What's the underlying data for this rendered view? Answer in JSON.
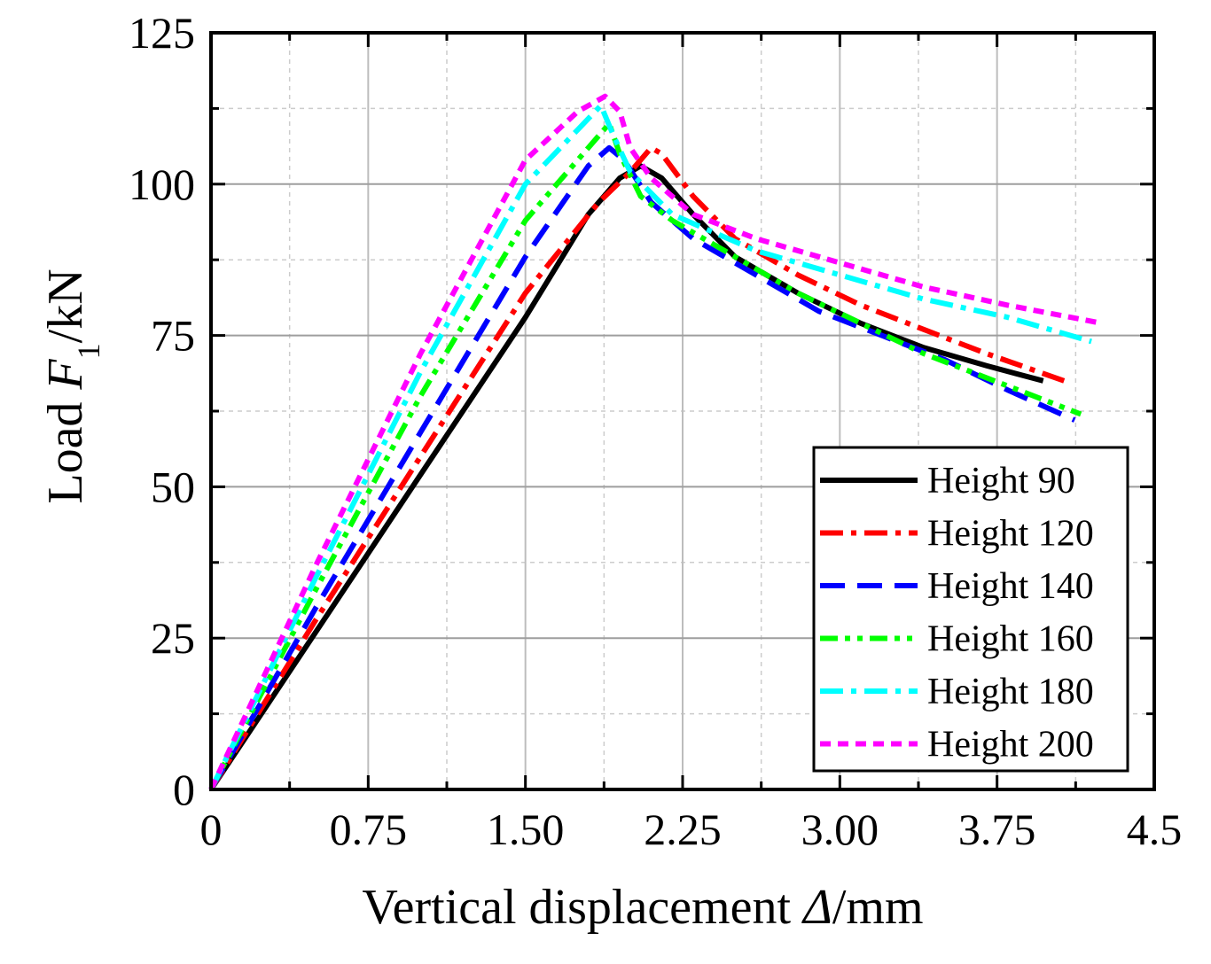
{
  "chart_data": {
    "type": "line",
    "title": "",
    "xlabel": "Vertical displacement Δ/mm",
    "xlabel_parts": {
      "prefix": "Vertical displacement ",
      "symbol": "Δ",
      "suffix": "/mm"
    },
    "ylabel": "Load F1/kN",
    "ylabel_parts": {
      "prefix": "Load ",
      "symbol": "F",
      "subscript": "1",
      "suffix": "/kN"
    },
    "xlim": [
      0,
      4.5
    ],
    "ylim": [
      0,
      125
    ],
    "x_ticks": [
      0,
      0.75,
      1.5,
      2.25,
      3.0,
      3.75,
      4.5
    ],
    "x_tick_labels": [
      "0",
      "0.75",
      "1.50",
      "2.25",
      "3.00",
      "3.75",
      "4.5"
    ],
    "y_ticks": [
      0,
      25,
      50,
      75,
      100,
      125
    ],
    "y_tick_labels": [
      "0",
      "25",
      "50",
      "75",
      "100",
      "125"
    ],
    "grid": true,
    "legend_position": "bottom-right",
    "series": [
      {
        "name": "Height 90",
        "color": "#000000",
        "style": "solid",
        "x": [
          0,
          0.5,
          1.0,
          1.5,
          1.8,
          1.95,
          2.05,
          2.15,
          2.3,
          2.5,
          2.8,
          3.1,
          3.4,
          3.7,
          3.97
        ],
        "y": [
          0,
          26,
          52,
          78,
          95,
          101,
          103,
          101,
          95,
          88,
          82,
          77,
          73,
          70,
          67.5
        ]
      },
      {
        "name": "Height 120",
        "color": "#ff0000",
        "style": "dash-dot",
        "x": [
          0,
          0.5,
          1.0,
          1.5,
          1.85,
          2.0,
          2.1,
          2.15,
          2.3,
          2.5,
          2.8,
          3.1,
          3.4,
          3.7,
          4.07
        ],
        "y": [
          0,
          28,
          55,
          82,
          97,
          102,
          106,
          105,
          98,
          91,
          85,
          80,
          76,
          72,
          67.5
        ]
      },
      {
        "name": "Height 140",
        "color": "#0000ff",
        "style": "dash",
        "x": [
          0,
          0.5,
          1.0,
          1.5,
          1.8,
          1.9,
          1.97,
          2.1,
          2.3,
          2.6,
          2.9,
          3.2,
          3.5,
          3.8,
          4.12
        ],
        "y": [
          0,
          30,
          59,
          88,
          103,
          106,
          104,
          97,
          91,
          85,
          79,
          75,
          71,
          66,
          61
        ]
      },
      {
        "name": "Height 160",
        "color": "#00ff00",
        "style": "dash-dot-dot",
        "x": [
          0,
          0.5,
          1.0,
          1.5,
          1.8,
          1.9,
          1.95,
          2.05,
          2.2,
          2.5,
          2.8,
          3.1,
          3.4,
          3.7,
          4.15
        ],
        "y": [
          0,
          33,
          65,
          94,
          106,
          110,
          105,
          98,
          94,
          88,
          82,
          77,
          72,
          68,
          62
        ]
      },
      {
        "name": "Height 180",
        "color": "#00ffff",
        "style": "dash-dot",
        "x": [
          0,
          0.5,
          1.0,
          1.5,
          1.75,
          1.86,
          1.92,
          2.0,
          2.2,
          2.6,
          3.0,
          3.4,
          3.8,
          4.2
        ],
        "y": [
          0,
          35,
          69,
          100,
          109,
          113,
          108,
          102,
          95,
          89,
          85,
          81,
          78,
          74
        ]
      },
      {
        "name": "Height 200",
        "color": "#ff00ff",
        "style": "short-dash",
        "x": [
          0,
          0.5,
          1.0,
          1.5,
          1.75,
          1.88,
          1.95,
          2.0,
          2.1,
          2.3,
          2.6,
          3.0,
          3.4,
          3.8,
          4.25
        ],
        "y": [
          0,
          37,
          72,
          104,
          112,
          114.5,
          112,
          106,
          101,
          95,
          91,
          87,
          83,
          80,
          77
        ]
      }
    ]
  }
}
